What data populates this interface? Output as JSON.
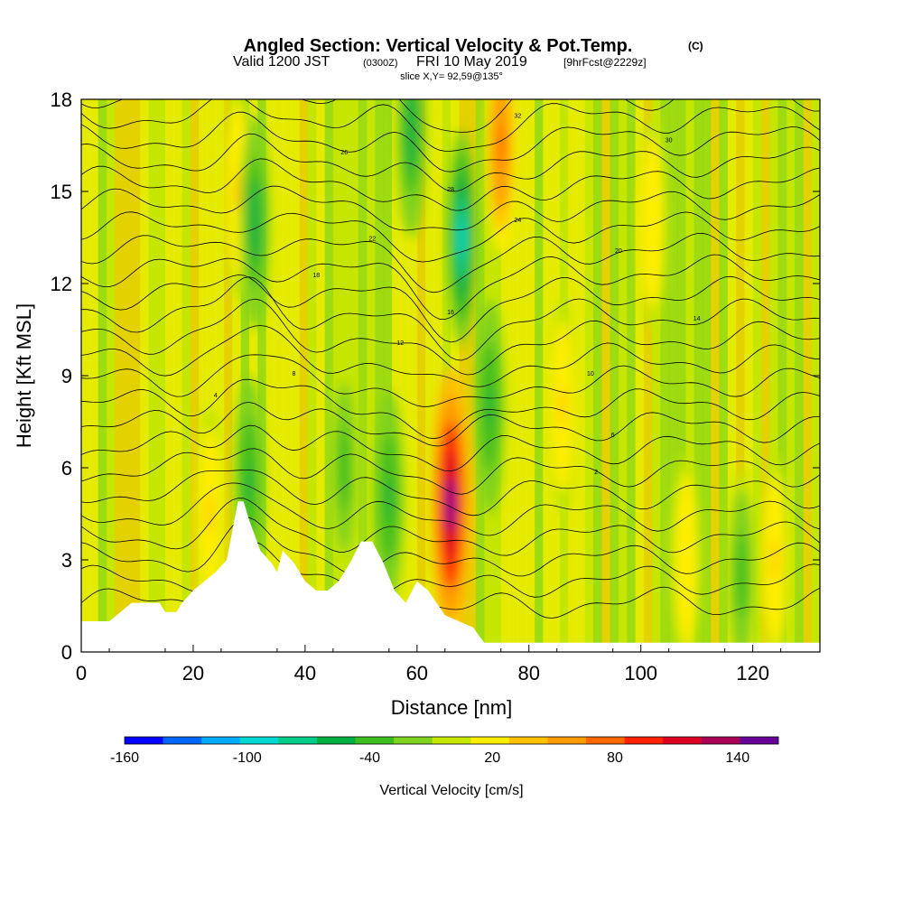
{
  "chart_data": {
    "type": "heatmap",
    "title": "Angled Section: Vertical Velocity & Pot.Temp.",
    "title_mark": "(C)",
    "subtitle_main": "Valid 1200 JST",
    "subtitle_z": "(0300Z)",
    "subtitle_date": "FRI 10 May 2019",
    "subtitle_fcst": "[9hrFcst@2229z]",
    "slice_label": "slice X,Y= 92,59@135°",
    "xlabel": "Distance [nm]",
    "ylabel": "Height [Kft MSL]",
    "xlim": [
      0,
      132
    ],
    "ylim": [
      0,
      18
    ],
    "xticks": [
      "0",
      "20",
      "40",
      "60",
      "80",
      "100",
      "120"
    ],
    "yticks": [
      "0",
      "3",
      "6",
      "9",
      "12",
      "15",
      "18"
    ],
    "colorbar": {
      "label": "Vertical Velocity [cm/s]",
      "ticks": [
        "-160",
        "-100",
        "-40",
        "20",
        "80",
        "140"
      ],
      "tick_values": [
        -160,
        -100,
        -40,
        20,
        80,
        140
      ],
      "range": [
        -160,
        160
      ],
      "colors": [
        "#0000ff",
        "#0066ff",
        "#00aaff",
        "#00d8d0",
        "#00cc88",
        "#00b040",
        "#3cbe1e",
        "#7fd21e",
        "#c4e600",
        "#ffee00",
        "#ffc000",
        "#ff9900",
        "#ff6600",
        "#ff2200",
        "#dd0022",
        "#aa0055",
        "#660099"
      ]
    },
    "terrain": [
      [
        0,
        1.0
      ],
      [
        5,
        1.0
      ],
      [
        7,
        1.3
      ],
      [
        9,
        1.6
      ],
      [
        14,
        1.6
      ],
      [
        15,
        1.3
      ],
      [
        17,
        1.3
      ],
      [
        18,
        1.6
      ],
      [
        20,
        2.0
      ],
      [
        22,
        2.3
      ],
      [
        24,
        2.6
      ],
      [
        26,
        3.0
      ],
      [
        28,
        4.9
      ],
      [
        29,
        4.9
      ],
      [
        30,
        4.3
      ],
      [
        32,
        3.3
      ],
      [
        34,
        2.9
      ],
      [
        35,
        2.6
      ],
      [
        36,
        3.3
      ],
      [
        38,
        2.9
      ],
      [
        40,
        2.3
      ],
      [
        42,
        2.0
      ],
      [
        44,
        2.0
      ],
      [
        46,
        2.3
      ],
      [
        48,
        2.9
      ],
      [
        50,
        3.6
      ],
      [
        52,
        3.6
      ],
      [
        54,
        2.9
      ],
      [
        56,
        2.0
      ],
      [
        58,
        1.6
      ],
      [
        60,
        2.3
      ],
      [
        62,
        2.0
      ],
      [
        65,
        1.2
      ],
      [
        70,
        0.8
      ],
      [
        72,
        0.3
      ],
      [
        132,
        0.3
      ]
    ],
    "updrafts": [
      {
        "x": 66,
        "y": 4.8,
        "w": 150
      },
      {
        "x": 75,
        "y": 16.5,
        "w": 80
      },
      {
        "x": 23,
        "y": 4.5,
        "w": 30
      },
      {
        "x": 28,
        "y": 15,
        "w": 30
      },
      {
        "x": 86,
        "y": 8,
        "w": 30
      },
      {
        "x": 102,
        "y": 14,
        "w": 25
      },
      {
        "x": 124,
        "y": 3,
        "w": 30
      },
      {
        "x": 108,
        "y": 3,
        "w": 25
      }
    ],
    "downdrafts": [
      {
        "x": 31,
        "y": 14,
        "w": -60
      },
      {
        "x": 30,
        "y": 5.5,
        "w": -55
      },
      {
        "x": 68,
        "y": 13.5,
        "w": -90
      },
      {
        "x": 55,
        "y": 5,
        "w": -55
      },
      {
        "x": 47,
        "y": 6,
        "w": -45
      },
      {
        "x": 73,
        "y": 8,
        "w": -50
      },
      {
        "x": 118,
        "y": 2.5,
        "w": -45
      },
      {
        "x": 59,
        "y": 17,
        "w": -60
      }
    ],
    "isentrope_labels": [
      "32",
      "30",
      "28",
      "26",
      "24",
      "22",
      "20",
      "18",
      "16",
      "14",
      "12",
      "10",
      "8",
      "6",
      "4",
      "2"
    ]
  }
}
